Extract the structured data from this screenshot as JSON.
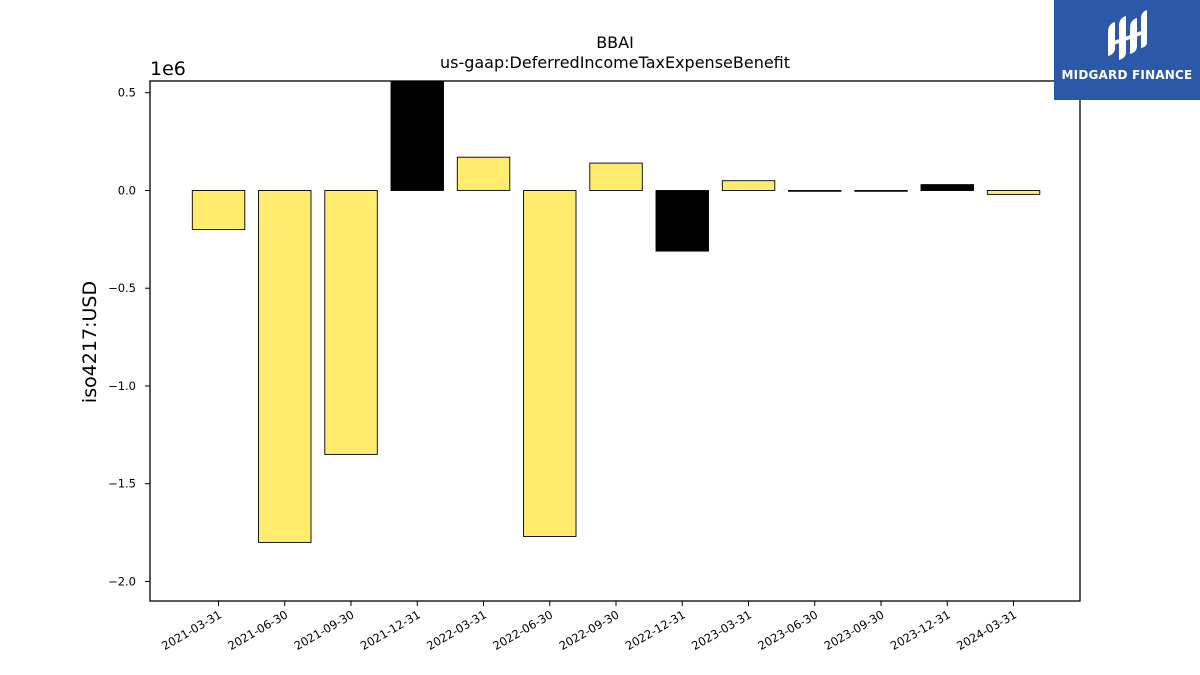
{
  "chart_data": {
    "type": "bar",
    "title": "BBAI",
    "subtitle": "us-gaap:DeferredIncomeTaxExpenseBenefit",
    "ylabel": "iso4217:USD",
    "xlabel": "",
    "y_scale_label": "1e6",
    "ylim": [
      -2.1,
      0.56
    ],
    "yticks": [
      0.5,
      0.0,
      -0.5,
      -1.0,
      -1.5,
      -2.0
    ],
    "ytick_labels": [
      "0.5",
      "0.0",
      "−0.5",
      "−1.0",
      "−1.5",
      "−2.0"
    ],
    "categories": [
      "2021-03-31",
      "2021-06-30",
      "2021-09-30",
      "2021-12-31",
      "2022-03-31",
      "2022-06-30",
      "2022-09-30",
      "2022-12-31",
      "2023-03-31",
      "2023-06-30",
      "2023-09-30",
      "2023-12-31",
      "2024-03-31"
    ],
    "values": [
      -0.2,
      -1.8,
      -1.35,
      0.56,
      0.17,
      -1.77,
      0.14,
      -0.31,
      0.05,
      -0.003,
      -0.003,
      0.03,
      -0.02
    ],
    "bar_colors": [
      "#ffec6e",
      "#ffec6e",
      "#ffec6e",
      "#000000",
      "#ffec6e",
      "#ffec6e",
      "#ffec6e",
      "#000000",
      "#ffec6e",
      "#ffec6e",
      "#ffec6e",
      "#000000",
      "#ffec6e"
    ],
    "grid": false
  },
  "logo": {
    "text": "MIDGARD FINANCE",
    "background": "#2c58a8"
  }
}
